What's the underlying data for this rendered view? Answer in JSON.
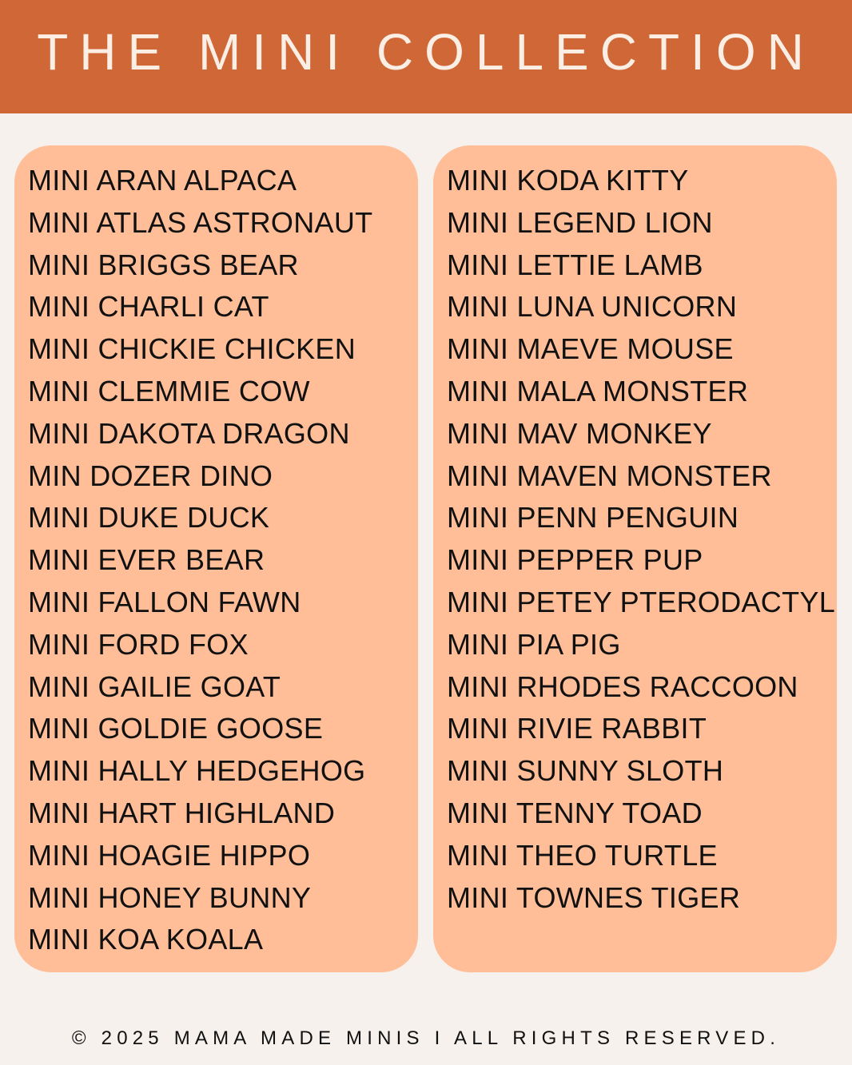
{
  "header": {
    "title": "THE MINI COLLECTION"
  },
  "colors": {
    "header": "#cf6736",
    "panel": "#ffbe97",
    "background": "#f6f1ed"
  },
  "left_column": [
    "MINI ARAN ALPACA",
    "MINI ATLAS ASTRONAUT",
    "MINI BRIGGS BEAR",
    "MINI CHARLI CAT",
    "MINI CHICKIE CHICKEN",
    "MINI CLEMMIE COW",
    "MINI DAKOTA DRAGON",
    "MIN DOZER DINO",
    "MINI DUKE DUCK",
    "MINI EVER BEAR",
    "MINI FALLON FAWN",
    "MINI FORD FOX",
    "MINI GAILIE GOAT",
    "MINI GOLDIE GOOSE",
    "MINI HALLY HEDGEHOG",
    "MINI HART HIGHLAND",
    "MINI HOAGIE HIPPO",
    "MINI HONEY BUNNY",
    "MINI KOA KOALA"
  ],
  "right_column": [
    "MINI KODA KITTY",
    "MINI LEGEND LION",
    "MINI LETTIE LAMB",
    "MINI LUNA UNICORN",
    "MINI MAEVE MOUSE",
    "MINI MALA MONSTER",
    "MINI MAV MONKEY",
    "MINI MAVEN MONSTER",
    "MINI PENN PENGUIN",
    "MINI PEPPER PUP",
    "MINI PETEY PTERODACTYL",
    "MINI PIA PIG",
    "MINI RHODES RACCOON",
    "MINI RIVIE RABBIT",
    "MINI SUNNY SLOTH",
    "MINI TENNY TOAD",
    "MINI THEO TURTLE",
    "MINI TOWNES TIGER"
  ],
  "footer": {
    "text": "© 2025 MAMA MADE MINIS I ALL RIGHTS RESERVED."
  }
}
